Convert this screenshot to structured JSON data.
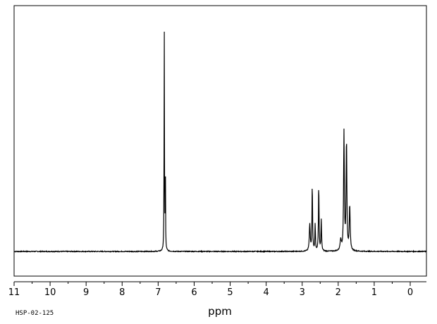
{
  "chart_data": {
    "type": "line",
    "xlabel": "ppm",
    "ylabel": "",
    "title": "",
    "xlim": [
      11,
      -0.45
    ],
    "x_reversed": true,
    "x_ticks": [
      "11",
      "10",
      "9",
      "8",
      "7",
      "6",
      "5",
      "4",
      "3",
      "2",
      "1",
      "0"
    ],
    "x_minor_step": 0.5,
    "ylim": [
      -0.12,
      1.08
    ],
    "grid": false,
    "legend": "none",
    "baseline": 0.0,
    "series": [
      {
        "peaks": [
          {
            "x": 6.83,
            "y": 1.0,
            "width": 0.012
          },
          {
            "x": 6.8,
            "y": 0.48,
            "width": 0.01
          },
          {
            "x": 2.79,
            "y": 0.12,
            "width": 0.03
          },
          {
            "x": 2.72,
            "y": 0.3,
            "width": 0.02
          },
          {
            "x": 2.64,
            "y": 0.12,
            "width": 0.018
          },
          {
            "x": 2.54,
            "y": 0.3,
            "width": 0.02
          },
          {
            "x": 2.47,
            "y": 0.14,
            "width": 0.02
          },
          {
            "x": 1.84,
            "y": 0.53,
            "width": 0.025
          },
          {
            "x": 1.77,
            "y": 0.5,
            "width": 0.025
          },
          {
            "x": 1.68,
            "y": 0.2,
            "width": 0.03
          },
          {
            "x": 1.93,
            "y": 0.05,
            "width": 0.04
          }
        ],
        "color": "#000000"
      }
    ],
    "footnote": "HSP-02-125"
  }
}
